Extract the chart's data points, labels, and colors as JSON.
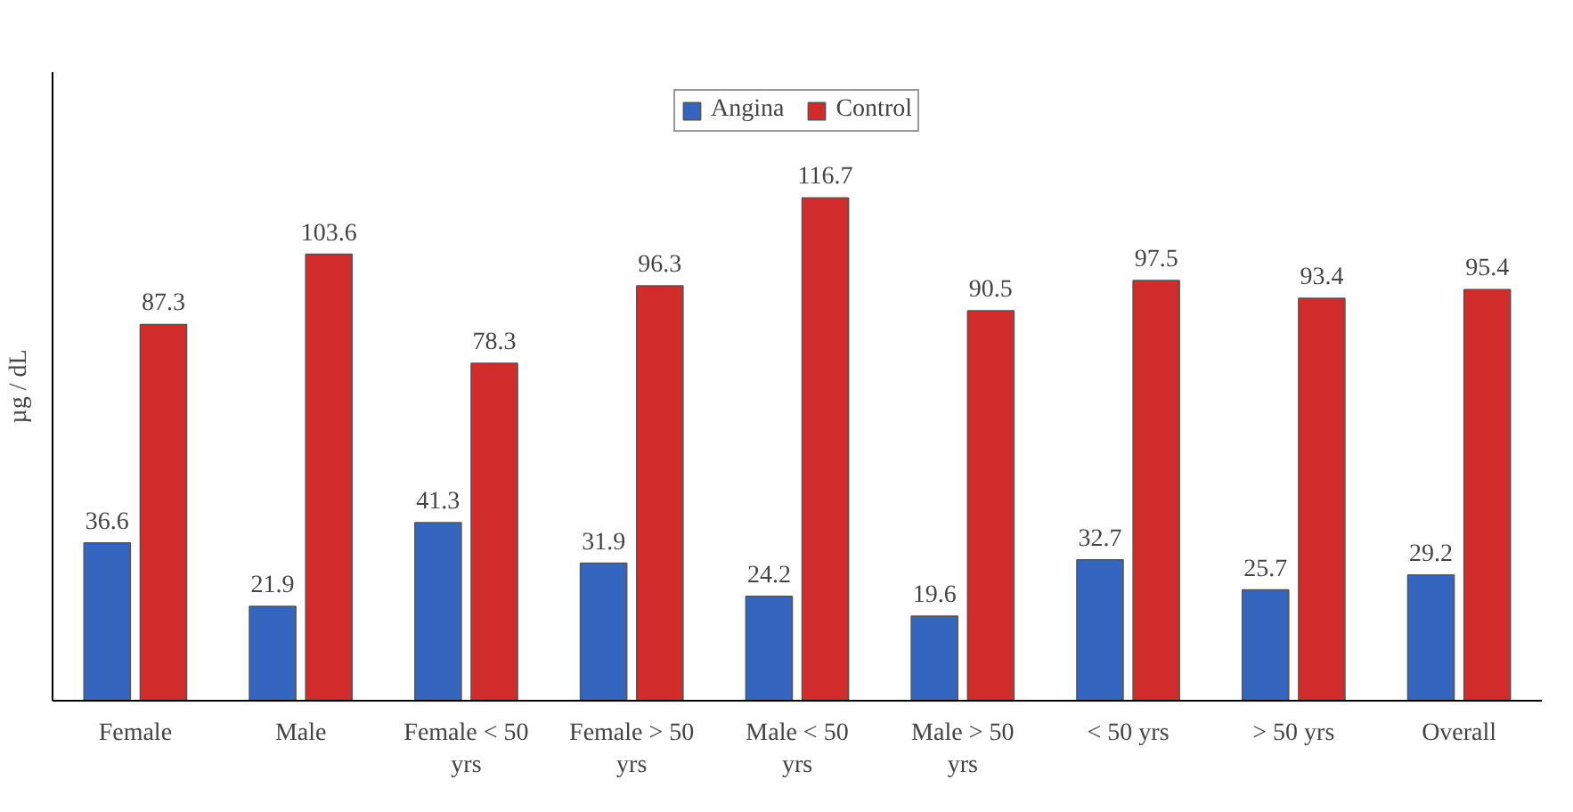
{
  "chart_data": {
    "type": "bar",
    "ylabel": "µg / dL",
    "categories": [
      "Female",
      "Male",
      "Female < 50 yrs",
      "Female > 50 yrs",
      "Male < 50 yrs",
      "Male > 50 yrs",
      "< 50 yrs",
      "> 50 yrs",
      "Overall"
    ],
    "series": [
      {
        "name": "Angina",
        "color": "#3566bf",
        "values": [
          36.6,
          21.9,
          41.3,
          31.9,
          24.2,
          19.6,
          32.7,
          25.7,
          29.2
        ]
      },
      {
        "name": "Control",
        "color": "#d22b2b",
        "values": [
          87.3,
          103.6,
          78.3,
          96.3,
          116.7,
          90.5,
          97.5,
          93.4,
          95.4
        ]
      }
    ],
    "data_labels": true,
    "legend": "top",
    "grid": false
  }
}
